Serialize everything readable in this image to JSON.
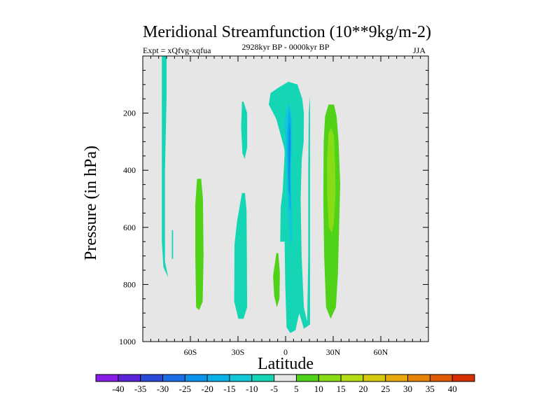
{
  "chart_data": {
    "type": "heatmap",
    "title": "Meridional Streamfunction (10**9kg/m-2)",
    "subtitle": "2928kyr BP - 0000kyr BP",
    "left_label": "Expt = xQfvg-xqfua",
    "right_label": "JJA",
    "xlabel": "Latitude",
    "ylabel": "Pressure (in hPa)",
    "xlim": [
      -90,
      90
    ],
    "ylim": [
      0,
      1000
    ],
    "x_ticks": [
      {
        "value": -60,
        "label": "60S"
      },
      {
        "value": -30,
        "label": "30S"
      },
      {
        "value": 0,
        "label": "0"
      },
      {
        "value": 30,
        "label": "30N"
      },
      {
        "value": 60,
        "label": "60N"
      }
    ],
    "y_ticks": [
      {
        "value": 200,
        "label": "200"
      },
      {
        "value": 400,
        "label": "400"
      },
      {
        "value": 600,
        "label": "600"
      },
      {
        "value": 800,
        "label": "800"
      },
      {
        "value": 1000,
        "label": "1000"
      }
    ],
    "colorbar": {
      "labels": [
        "-40",
        "-35",
        "-30",
        "-25",
        "-20",
        "-15",
        "-10",
        "-5",
        "5",
        "10",
        "15",
        "20",
        "25",
        "30",
        "35",
        "40"
      ],
      "colors": [
        "#8a1ce6",
        "#5a23d8",
        "#2a49d6",
        "#1a6ee6",
        "#0a93ea",
        "#08b1e6",
        "#10c8d8",
        "#14d6b4",
        "#e6e6e6",
        "#50d218",
        "#88dc16",
        "#b4dc12",
        "#d6c80c",
        "#e6a80a",
        "#e68208",
        "#e05a06",
        "#d82e04"
      ]
    },
    "regions": [
      {
        "name": "band-75S",
        "value": -6,
        "points": [
          [
            -78,
            0
          ],
          [
            -75,
            0
          ],
          [
            -75,
            140
          ],
          [
            -76,
            400
          ],
          [
            -76,
            720
          ],
          [
            -74,
            775
          ],
          [
            -77,
            740
          ],
          [
            -78,
            650
          ],
          [
            -78,
            300
          ]
        ]
      },
      {
        "name": "spot-70S",
        "value": -6,
        "points": [
          [
            -71.7,
            610
          ],
          [
            -70.9,
            610
          ],
          [
            -70.9,
            710
          ],
          [
            -71.7,
            710
          ]
        ]
      },
      {
        "name": "band-55S",
        "value": 7,
        "points": [
          [
            -55.8,
            430
          ],
          [
            -53.2,
            430
          ],
          [
            -52.1,
            500
          ],
          [
            -51.7,
            700
          ],
          [
            -52.3,
            860
          ],
          [
            -54.5,
            890
          ],
          [
            -56.4,
            880
          ],
          [
            -56.9,
            700
          ],
          [
            -56.9,
            520
          ]
        ]
      },
      {
        "name": "band-27S-upper",
        "value": -6,
        "points": [
          [
            -27.5,
            160
          ],
          [
            -26.5,
            160
          ],
          [
            -24.2,
            200
          ],
          [
            -24.2,
            320
          ],
          [
            -25.8,
            360
          ],
          [
            -27.2,
            340
          ],
          [
            -28,
            250
          ]
        ]
      },
      {
        "name": "band-27S-lower",
        "value": -6,
        "points": [
          [
            -27.5,
            480
          ],
          [
            -25.6,
            480
          ],
          [
            -24.6,
            540
          ],
          [
            -24.4,
            700
          ],
          [
            -24.2,
            880
          ],
          [
            -26.5,
            920
          ],
          [
            -29.8,
            920
          ],
          [
            -32.4,
            860
          ],
          [
            -32.2,
            660
          ],
          [
            -30.6,
            580
          ]
        ]
      },
      {
        "name": "spot-6S",
        "value": 7,
        "points": [
          [
            -5.8,
            690
          ],
          [
            -4.6,
            690
          ],
          [
            -3.6,
            760
          ],
          [
            -3.9,
            850
          ],
          [
            -5.5,
            880
          ],
          [
            -7.2,
            840
          ],
          [
            -7.9,
            770
          ]
        ]
      },
      {
        "name": "cell-outer",
        "value": -6,
        "points": [
          [
            1.8,
            90
          ],
          [
            7.5,
            100
          ],
          [
            10.5,
            150
          ],
          [
            11.5,
            200
          ],
          [
            11.4,
            300
          ],
          [
            10.2,
            360
          ],
          [
            9.5,
            500
          ],
          [
            10.1,
            700
          ],
          [
            11.5,
            880
          ],
          [
            13.6,
            930
          ],
          [
            14.3,
            700
          ],
          [
            14.3,
            400
          ],
          [
            14.6,
            200
          ],
          [
            15.4,
            140
          ],
          [
            15.4,
            940
          ],
          [
            11.5,
            955
          ],
          [
            8.6,
            900
          ],
          [
            6.2,
            960
          ],
          [
            2.9,
            970
          ],
          [
            0.6,
            950
          ],
          [
            -0.2,
            800
          ],
          [
            -0.6,
            650
          ],
          [
            -3.4,
            650
          ],
          [
            -3.1,
            530
          ],
          [
            -1.8,
            470
          ],
          [
            -0.5,
            330
          ],
          [
            -5.9,
            220
          ],
          [
            -10.6,
            170
          ],
          [
            -9.5,
            130
          ],
          [
            -4.3,
            110
          ]
        ]
      },
      {
        "name": "cell-minus10",
        "value": -10,
        "points": [
          [
            1.6,
            140
          ],
          [
            4.6,
            160
          ],
          [
            5.7,
            230
          ],
          [
            4.6,
            320
          ],
          [
            3.8,
            420
          ],
          [
            4.8,
            560
          ],
          [
            6.2,
            760
          ],
          [
            6.3,
            880
          ],
          [
            3.8,
            900
          ],
          [
            1.2,
            860
          ],
          [
            0.5,
            700
          ],
          [
            0.7,
            500
          ],
          [
            0.6,
            380
          ],
          [
            -2.6,
            260
          ],
          [
            -4.5,
            200
          ],
          [
            -1.6,
            150
          ]
        ]
      },
      {
        "name": "cell-minus15",
        "value": -15,
        "points": [
          [
            1.6,
            160
          ],
          [
            3.8,
            200
          ],
          [
            4.2,
            300
          ],
          [
            3.3,
            420
          ],
          [
            3.9,
            540
          ],
          [
            4.1,
            650
          ],
          [
            3,
            660
          ],
          [
            1.5,
            560
          ],
          [
            0.9,
            440
          ],
          [
            0,
            300
          ],
          [
            -0.8,
            230
          ]
        ]
      },
      {
        "name": "cell-minus20",
        "value": -20,
        "points": [
          [
            2.1,
            180
          ],
          [
            3.3,
            220
          ],
          [
            3.5,
            300
          ],
          [
            2.9,
            400
          ],
          [
            3.5,
            530
          ],
          [
            2.5,
            540
          ],
          [
            1.6,
            460
          ],
          [
            1,
            360
          ],
          [
            0.8,
            280
          ]
        ]
      },
      {
        "name": "cell-minus25",
        "value": -25,
        "points": [
          [
            2.3,
            230
          ],
          [
            3,
            260
          ],
          [
            3.2,
            330
          ],
          [
            2.6,
            420
          ],
          [
            2.8,
            490
          ],
          [
            2.1,
            470
          ],
          [
            1.8,
            390
          ],
          [
            1.9,
            300
          ]
        ]
      },
      {
        "name": "band-28N-outer",
        "value": 7,
        "points": [
          [
            27.1,
            170
          ],
          [
            30.5,
            170
          ],
          [
            32.1,
            210
          ],
          [
            33.4,
            300
          ],
          [
            34.4,
            450
          ],
          [
            33.5,
            650
          ],
          [
            33,
            760
          ],
          [
            31.7,
            880
          ],
          [
            28.4,
            920
          ],
          [
            25.5,
            880
          ],
          [
            24.3,
            700
          ],
          [
            23.8,
            500
          ],
          [
            24,
            300
          ],
          [
            24.9,
            210
          ]
        ]
      },
      {
        "name": "band-28N-inner",
        "value": 12,
        "points": [
          [
            28.8,
            250
          ],
          [
            30.5,
            280
          ],
          [
            31.2,
            380
          ],
          [
            31.5,
            480
          ],
          [
            30.5,
            580
          ],
          [
            29.3,
            620
          ],
          [
            27.2,
            600
          ],
          [
            26.2,
            480
          ],
          [
            26.1,
            360
          ],
          [
            27.1,
            270
          ]
        ]
      }
    ]
  }
}
